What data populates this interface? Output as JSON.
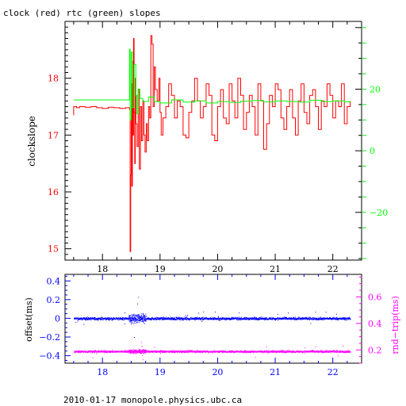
{
  "title": "clock (red) rtc (green) slopes",
  "footer": "2010-01-17  monopole.physics.ubc.ca",
  "colors": {
    "axis": "#000000",
    "clock": "#ff0000",
    "rtc": "#00ff00",
    "offset": "#0000ff",
    "rndtrip": "#ff00ff"
  },
  "chart_data": [
    {
      "type": "line",
      "title": "clock (red) rtc (green) slopes",
      "xlabel": "",
      "ylabel": "clockslope",
      "xlim": [
        17.35,
        22.5
      ],
      "ylim": [
        14.8,
        19.0
      ],
      "y2lim": [
        -35.5,
        42.0
      ],
      "x_ticks": [
        18,
        19,
        20,
        21,
        22
      ],
      "y_ticks": [
        15,
        16,
        17,
        18
      ],
      "y2_ticks": [
        -20,
        0,
        20
      ],
      "y2_tick_labels": [
        "−20",
        "0",
        "20"
      ],
      "grid": false,
      "series": [
        {
          "name": "clock",
          "axis": "left",
          "x": [
            17.5,
            17.5,
            17.55,
            17.6,
            17.7,
            17.8,
            17.9,
            18.0,
            18.1,
            18.2,
            18.3,
            18.4,
            18.47,
            18.48,
            18.49,
            18.5,
            18.51,
            18.52,
            18.53,
            18.54,
            18.55,
            18.56,
            18.57,
            18.58,
            18.6,
            18.62,
            18.64,
            18.66,
            18.68,
            18.7,
            18.72,
            18.74,
            18.76,
            18.78,
            18.8,
            18.82,
            18.84,
            18.86,
            18.88,
            18.9,
            18.92,
            18.95,
            18.98,
            19.0,
            19.02,
            19.05,
            19.1,
            19.15,
            19.2,
            19.25,
            19.3,
            19.35,
            19.4,
            19.45,
            19.5,
            19.55,
            19.6,
            19.65,
            19.7,
            19.75,
            19.8,
            19.85,
            19.9,
            19.95,
            20.0,
            20.05,
            20.1,
            20.15,
            20.2,
            20.25,
            20.3,
            20.35,
            20.4,
            20.45,
            20.5,
            20.55,
            20.6,
            20.65,
            20.7,
            20.75,
            20.8,
            20.85,
            20.9,
            20.95,
            21.0,
            21.05,
            21.1,
            21.15,
            21.2,
            21.25,
            21.3,
            21.35,
            21.4,
            21.45,
            21.5,
            21.55,
            21.6,
            21.65,
            21.7,
            21.75,
            21.8,
            21.85,
            21.9,
            21.95,
            22.0,
            22.05,
            22.1,
            22.15,
            22.2,
            22.25,
            22.3
          ],
          "values": [
            17.35,
            17.5,
            17.48,
            17.5,
            17.49,
            17.5,
            17.48,
            17.47,
            17.49,
            17.48,
            17.47,
            17.48,
            17.45,
            14.95,
            16.3,
            17.9,
            16.1,
            18.3,
            17.0,
            18.7,
            17.4,
            16.5,
            18.0,
            17.2,
            16.8,
            17.8,
            16.4,
            17.5,
            16.9,
            17.6,
            17.0,
            16.7,
            17.2,
            16.9,
            17.5,
            17.3,
            18.75,
            18.6,
            17.5,
            18.2,
            17.8,
            17.6,
            18.0,
            17.4,
            17.0,
            17.3,
            17.5,
            17.9,
            17.7,
            17.3,
            17.6,
            17.5,
            17.0,
            16.95,
            17.4,
            17.6,
            18.0,
            17.6,
            17.3,
            17.5,
            17.9,
            17.7,
            17.0,
            16.9,
            17.5,
            17.8,
            17.3,
            17.2,
            17.9,
            17.6,
            17.3,
            18.0,
            17.7,
            17.1,
            17.4,
            17.7,
            17.5,
            17.0,
            17.9,
            17.6,
            16.75,
            17.2,
            17.7,
            17.5,
            17.9,
            17.8,
            17.3,
            17.1,
            17.5,
            17.8,
            17.3,
            17.0,
            17.6,
            17.9,
            17.4,
            17.2,
            17.7,
            17.8,
            17.5,
            17.1,
            17.6,
            17.5,
            17.9,
            17.7,
            17.3,
            17.6,
            17.5,
            17.9,
            17.2,
            17.5,
            17.6
          ]
        },
        {
          "name": "rtc",
          "axis": "right",
          "x": [
            17.5,
            18.0,
            18.45,
            18.46,
            18.47,
            18.48,
            18.5,
            18.52,
            18.55,
            18.58,
            18.6,
            18.62,
            18.65,
            18.7,
            18.8,
            18.9,
            19.0,
            19.2,
            19.4,
            19.6,
            19.8,
            20.0,
            20.2,
            20.4,
            20.6,
            20.8,
            21.0,
            21.2,
            21.4,
            21.6,
            21.8,
            22.0,
            22.2,
            22.3
          ],
          "values": [
            16.5,
            16.5,
            16.5,
            16.5,
            33.0,
            10.0,
            32.0,
            14.0,
            28.0,
            18.0,
            12.0,
            20.0,
            17.0,
            16.0,
            17.5,
            16.0,
            15.5,
            16.5,
            15.8,
            16.2,
            15.5,
            16.0,
            15.7,
            16.1,
            16.3,
            15.9,
            16.2,
            16.0,
            15.8,
            16.4,
            16.0,
            16.2,
            15.9,
            16.1
          ]
        }
      ]
    },
    {
      "type": "scatter",
      "title": "",
      "xlabel": "",
      "ylabel": "offset(ms)",
      "y2label": "rnd−trip(ms)",
      "xlim": [
        17.35,
        22.5
      ],
      "ylim": [
        -0.48,
        0.47
      ],
      "y2lim": [
        0.1,
        0.77
      ],
      "x_ticks": [
        18,
        19,
        20,
        21,
        22
      ],
      "y_ticks": [
        -0.4,
        -0.2,
        0,
        0.2,
        0.4
      ],
      "y_tick_labels": [
        "−0.4",
        "−0.2",
        "0",
        "0.2",
        "0.4"
      ],
      "y2_ticks": [
        0.2,
        0.4,
        0.6
      ],
      "grid": false,
      "series": [
        {
          "name": "offset",
          "axis": "left",
          "x_range": [
            17.5,
            22.3
          ],
          "center": 0.0,
          "spread": 0.02,
          "burst_range": [
            18.45,
            18.75
          ],
          "burst_spread": 0.07
        },
        {
          "name": "rnd-trip",
          "axis": "right",
          "x_range": [
            17.5,
            22.3
          ],
          "center": 0.19,
          "spread": 0.012,
          "burst_range": [
            18.45,
            18.75
          ],
          "burst_spread": 0.02
        }
      ]
    }
  ]
}
